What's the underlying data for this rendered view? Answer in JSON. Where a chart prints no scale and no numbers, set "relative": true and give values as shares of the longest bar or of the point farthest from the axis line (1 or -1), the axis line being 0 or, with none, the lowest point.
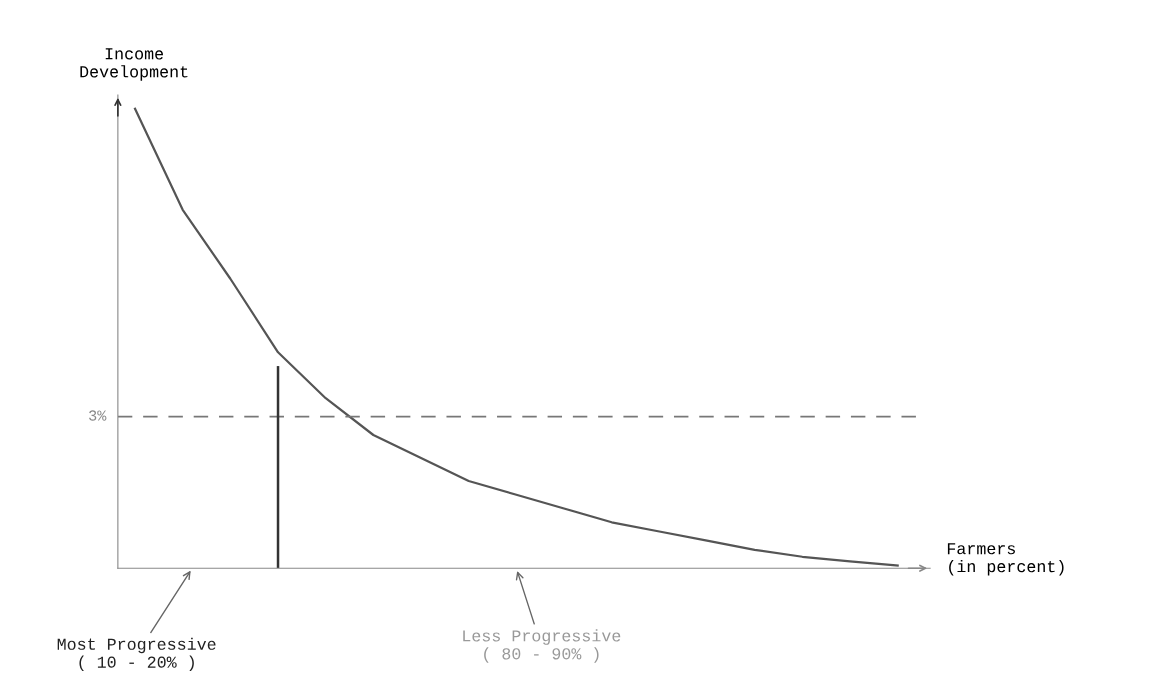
{
  "chart_data": {
    "type": "line",
    "relative": true,
    "xlabel": "Farmers\n(in percent)",
    "ylabel": "Income\nDevelopment",
    "categories": [
      null,
      null,
      null,
      null,
      null,
      null,
      null,
      null,
      null,
      null,
      null,
      null,
      null,
      null,
      null,
      null,
      null
    ],
    "series": [
      {
        "color": "#555555",
        "values": [
          1.0,
          0.78,
          0.63,
          0.47,
          0.37,
          0.29,
          0.24,
          0.19,
          0.16,
          0.13,
          0.1,
          0.08,
          0.06,
          0.04,
          0.025,
          0.015,
          0.006
        ]
      }
    ],
    "ref_lines": [
      {
        "axis": "y",
        "value": 0.33,
        "color": "#777777",
        "line_style": "dashed"
      }
    ],
    "annotations": [
      "Most Progressive\n( 10 - 20% )",
      "Less Progressive\n( 80 - 90% )",
      "3%"
    ],
    "legend": false,
    "marker": "none",
    "line_style": "solid"
  }
}
